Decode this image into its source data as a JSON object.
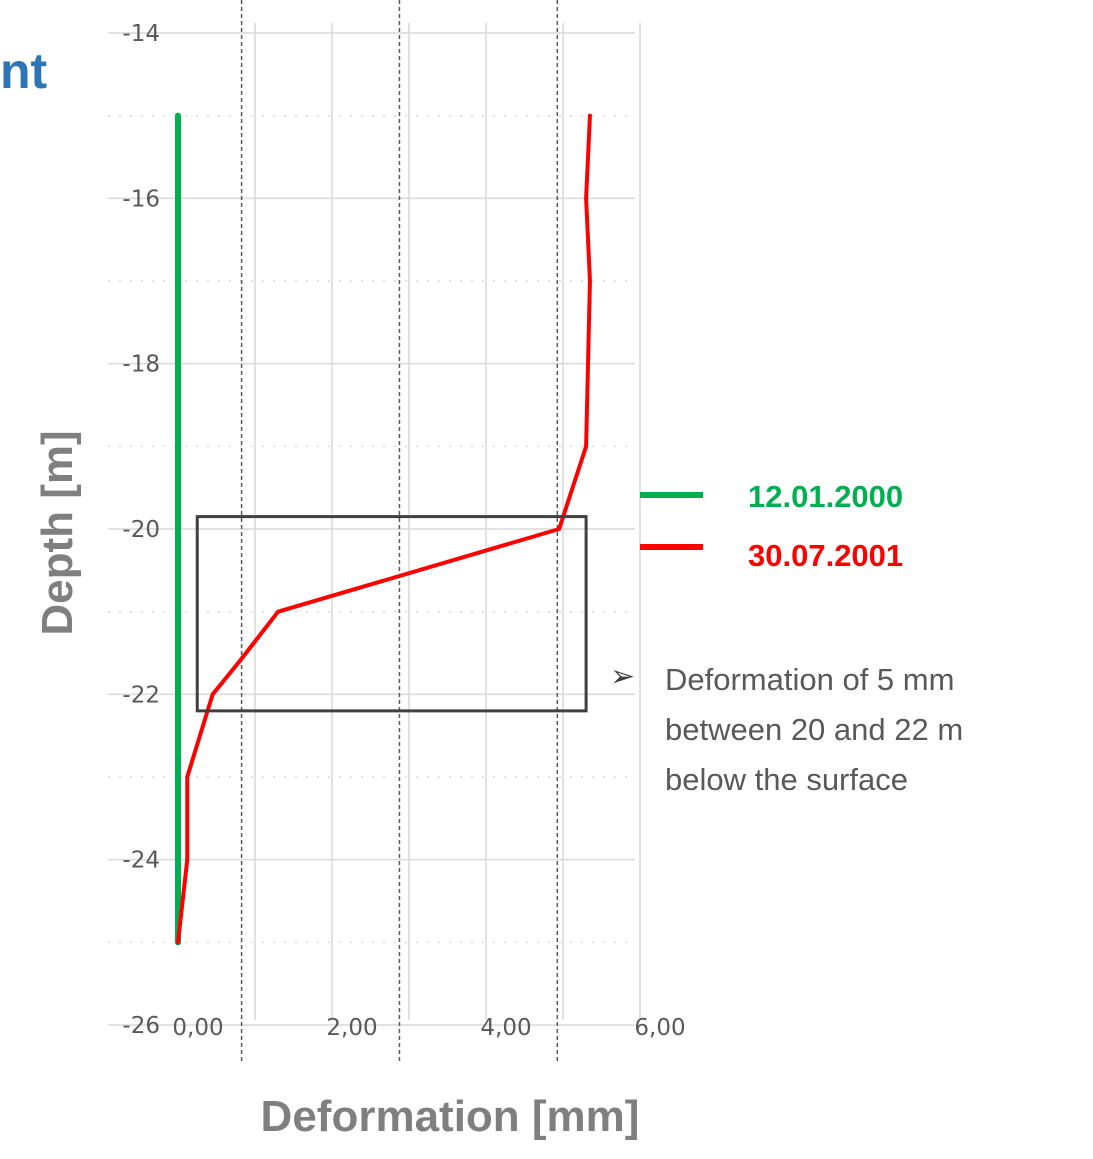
{
  "slide": {
    "title_fragment": "nt",
    "title_color": "#2E75B6"
  },
  "chart_data": {
    "type": "line",
    "xlabel": "Deformation [mm]",
    "ylabel": "Depth [m]",
    "xlim": [
      0,
      6
    ],
    "ylim": [
      -26,
      -14
    ],
    "x_ticks": [
      0,
      2,
      4,
      6
    ],
    "x_tick_labels": [
      "0,00",
      "2,00",
      "4,00",
      "6,00"
    ],
    "y_ticks": [
      -26,
      -24,
      -22,
      -20,
      -18,
      -16,
      -14
    ],
    "y_tick_labels": [
      "-26",
      "-24",
      "-22",
      "-20",
      "-18",
      "-16",
      "-14"
    ],
    "grid": true,
    "legend_position": "right",
    "series": [
      {
        "name": "12.01.2000",
        "color": "#00B050",
        "points": [
          [
            0,
            -15
          ],
          [
            0,
            -25
          ]
        ]
      },
      {
        "name": "30.07.2001",
        "color": "#FF0000",
        "points": [
          [
            5.35,
            -15
          ],
          [
            5.3,
            -16
          ],
          [
            5.35,
            -17
          ],
          [
            5.3,
            -19
          ],
          [
            4.95,
            -20
          ],
          [
            1.3,
            -21
          ],
          [
            0.8,
            -21.6
          ],
          [
            0.45,
            -22
          ],
          [
            0.12,
            -23
          ],
          [
            0.12,
            -24
          ],
          [
            0,
            -25
          ]
        ]
      }
    ],
    "reference_lines_x": [
      0.8,
      2.85,
      4.9
    ],
    "highlight_box": {
      "x": [
        0.25,
        5.3
      ],
      "y": [
        -22.2,
        -19.85
      ]
    }
  },
  "annotation": {
    "bullet": "➢",
    "lines": [
      "Deformation of 5 mm",
      "between 20 and 22 m",
      "below the surface"
    ]
  },
  "colors": {
    "axis_title": "#7F7F7F",
    "tick_label": "#595959",
    "grid": "#D9D9D9",
    "box": "#404040"
  }
}
